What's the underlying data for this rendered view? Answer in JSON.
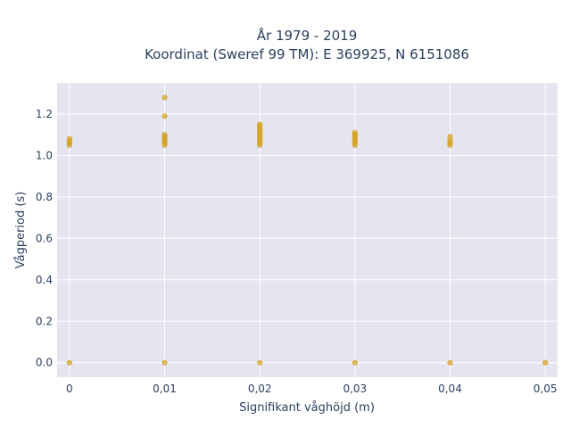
{
  "chart_data": {
    "type": "scatter",
    "title": "År 1979 - 2019",
    "subtitle": "Koordinat (Sweref 99 TM): E 369925, N 6151086",
    "xlabel": "Signifikant våghöjd (m)",
    "ylabel": "Vågperiod (s)",
    "xlim": [
      -0.0013,
      0.0513
    ],
    "ylim": [
      -0.07,
      1.35
    ],
    "x_ticks": [
      0,
      0.01,
      0.02,
      0.03,
      0.04,
      0.05
    ],
    "x_tick_labels": [
      "0",
      "0,01",
      "0,02",
      "0,03",
      "0,04",
      "0,05"
    ],
    "y_ticks": [
      0,
      0.2,
      0.4,
      0.6,
      0.8,
      1.0,
      1.2
    ],
    "y_tick_labels": [
      "0.0",
      "0.2",
      "0.4",
      "0.6",
      "0.8",
      "1.0",
      "1.2"
    ],
    "grid": true,
    "colors": {
      "marker": "#d4a020",
      "plot_bg": "#e5e5f0",
      "grid": "#ffffff"
    },
    "points": [
      {
        "x": 0,
        "y": 0
      },
      {
        "x": 0,
        "y": 1.05
      },
      {
        "x": 0,
        "y": 1.06
      },
      {
        "x": 0,
        "y": 1.07
      },
      {
        "x": 0,
        "y": 1.08
      },
      {
        "x": 0.01,
        "y": 0
      },
      {
        "x": 0.01,
        "y": 1.05
      },
      {
        "x": 0.01,
        "y": 1.06
      },
      {
        "x": 0.01,
        "y": 1.07
      },
      {
        "x": 0.01,
        "y": 1.08
      },
      {
        "x": 0.01,
        "y": 1.09
      },
      {
        "x": 0.01,
        "y": 1.1
      },
      {
        "x": 0.01,
        "y": 1.19
      },
      {
        "x": 0.01,
        "y": 1.28
      },
      {
        "x": 0.02,
        "y": 0
      },
      {
        "x": 0.02,
        "y": 1.05
      },
      {
        "x": 0.02,
        "y": 1.06
      },
      {
        "x": 0.02,
        "y": 1.07
      },
      {
        "x": 0.02,
        "y": 1.08
      },
      {
        "x": 0.02,
        "y": 1.09
      },
      {
        "x": 0.02,
        "y": 1.1
      },
      {
        "x": 0.02,
        "y": 1.11
      },
      {
        "x": 0.02,
        "y": 1.12
      },
      {
        "x": 0.02,
        "y": 1.13
      },
      {
        "x": 0.02,
        "y": 1.14
      },
      {
        "x": 0.02,
        "y": 1.15
      },
      {
        "x": 0.03,
        "y": 0
      },
      {
        "x": 0.03,
        "y": 1.05
      },
      {
        "x": 0.03,
        "y": 1.06
      },
      {
        "x": 0.03,
        "y": 1.07
      },
      {
        "x": 0.03,
        "y": 1.08
      },
      {
        "x": 0.03,
        "y": 1.09
      },
      {
        "x": 0.03,
        "y": 1.1
      },
      {
        "x": 0.03,
        "y": 1.11
      },
      {
        "x": 0.04,
        "y": 0
      },
      {
        "x": 0.04,
        "y": 1.05
      },
      {
        "x": 0.04,
        "y": 1.06
      },
      {
        "x": 0.04,
        "y": 1.07
      },
      {
        "x": 0.04,
        "y": 1.09
      },
      {
        "x": 0.05,
        "y": 0
      }
    ]
  }
}
